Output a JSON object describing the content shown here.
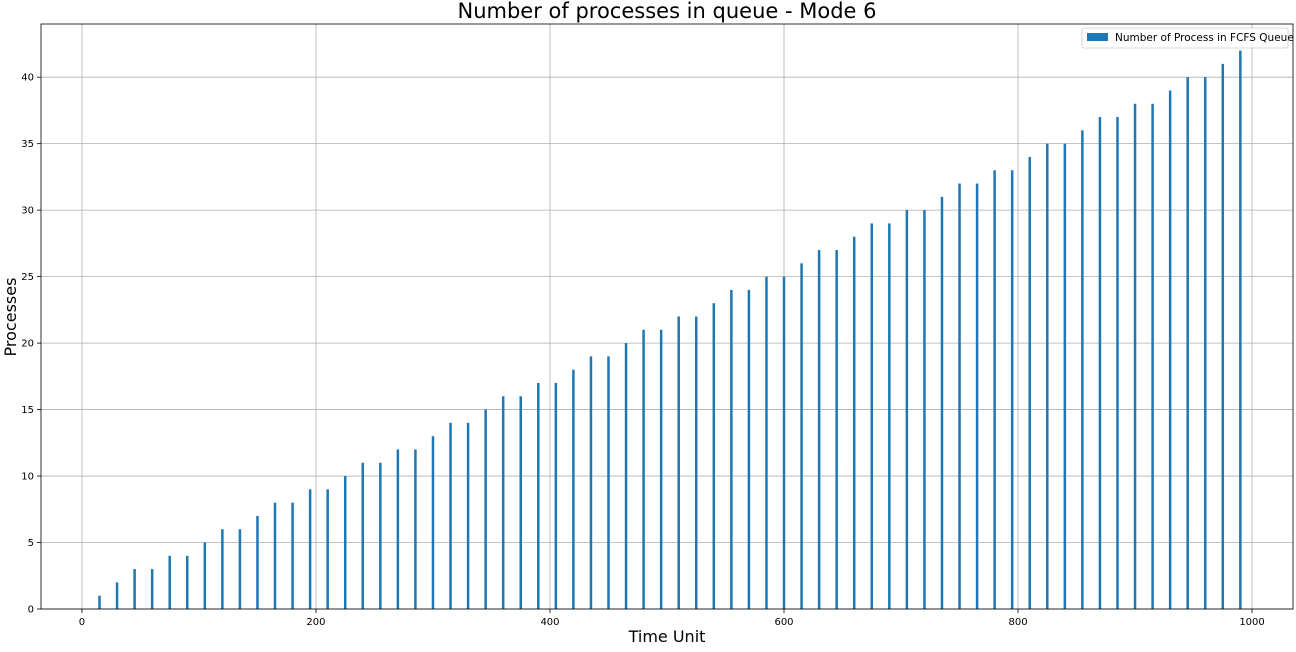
{
  "chart_data": {
    "type": "bar",
    "title": "Number of processes in queue - Mode 6",
    "xlabel": "Time Unit",
    "ylabel": "Processes",
    "xlim": [
      -35,
      1035
    ],
    "ylim": [
      0,
      44
    ],
    "xticks": [
      0,
      200,
      400,
      600,
      800,
      1000
    ],
    "yticks": [
      0,
      5,
      10,
      15,
      20,
      25,
      30,
      35,
      40
    ],
    "grid": true,
    "legend_position": "top-right",
    "series": [
      {
        "name": "Number of Process in FCFS Queue",
        "color": "#1f77b4",
        "x": [
          15,
          30,
          45,
          60,
          75,
          90,
          105,
          120,
          135,
          150,
          165,
          180,
          195,
          210,
          225,
          240,
          255,
          270,
          285,
          300,
          315,
          330,
          345,
          360,
          375,
          390,
          405,
          420,
          435,
          450,
          465,
          480,
          495,
          510,
          525,
          540,
          555,
          570,
          585,
          600,
          615,
          630,
          645,
          660,
          675,
          690,
          705,
          720,
          735,
          750,
          765,
          780,
          795,
          810,
          825,
          840,
          855,
          870,
          885,
          900,
          915,
          930,
          945,
          960,
          975,
          990
        ],
        "values": [
          1,
          2,
          3,
          3,
          4,
          4,
          5,
          6,
          6,
          7,
          8,
          8,
          9,
          9,
          10,
          11,
          11,
          12,
          12,
          13,
          14,
          14,
          15,
          16,
          16,
          17,
          17,
          18,
          19,
          19,
          20,
          21,
          21,
          22,
          22,
          23,
          24,
          24,
          25,
          25,
          26,
          27,
          27,
          28,
          29,
          29,
          30,
          30,
          31,
          32,
          32,
          33,
          33,
          34,
          35,
          35,
          36,
          37,
          37,
          38,
          38,
          39,
          40,
          40,
          41,
          42
        ]
      }
    ]
  }
}
